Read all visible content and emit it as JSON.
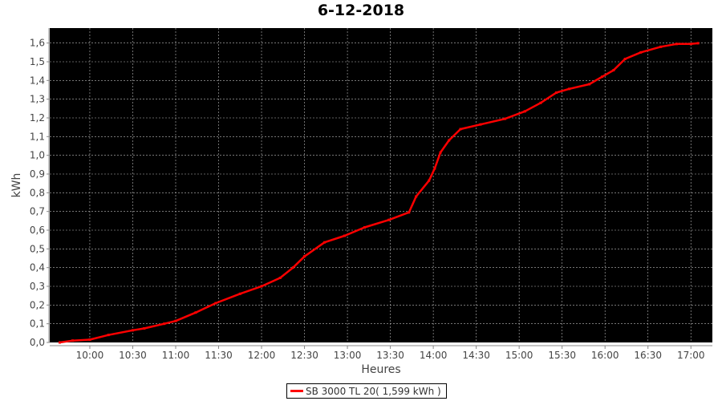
{
  "chart_data": {
    "type": "line",
    "title": "6-12-2018",
    "xlabel": "Heures",
    "ylabel": "kWh",
    "xlim": [
      "09:32",
      "17:15"
    ],
    "ylim": [
      0,
      1.68
    ],
    "x_ticks": [
      "10:00",
      "10:30",
      "11:00",
      "11:30",
      "12:00",
      "12:30",
      "13:00",
      "13:30",
      "14:00",
      "14:30",
      "15:00",
      "15:30",
      "16:00",
      "16:30",
      "17:00"
    ],
    "y_ticks": [
      "0,0",
      "0,1",
      "0,2",
      "0,3",
      "0,4",
      "0,5",
      "0,6",
      "0,7",
      "0,8",
      "0,9",
      "1,0",
      "1,1",
      "1,2",
      "1,3",
      "1,4",
      "1,5",
      "1,6"
    ],
    "grid": true,
    "background": "#000000",
    "legend_position": "bottom",
    "series": [
      {
        "name": "SB 3000 TL 20( 1,599 kWh )",
        "color": "#ff0000",
        "x": [
          "09:39",
          "09:48",
          "10:00",
          "10:13",
          "10:30",
          "10:38",
          "10:52",
          "11:00",
          "11:14",
          "11:28",
          "11:45",
          "12:00",
          "12:13",
          "12:22",
          "12:30",
          "12:44",
          "12:58",
          "13:12",
          "13:29",
          "13:43",
          "13:48",
          "13:57",
          "14:01",
          "14:05",
          "14:11",
          "14:19",
          "14:33",
          "14:50",
          "15:04",
          "15:15",
          "15:26",
          "15:35",
          "15:49",
          "15:58",
          "16:06",
          "16:14",
          "16:25",
          "16:39",
          "16:50",
          "17:00",
          "17:05"
        ],
        "y": [
          0,
          0.01,
          0.015,
          0.04,
          0.065,
          0.075,
          0.1,
          0.115,
          0.16,
          0.21,
          0.26,
          0.3,
          0.345,
          0.4,
          0.46,
          0.535,
          0.57,
          0.615,
          0.655,
          0.695,
          0.78,
          0.865,
          0.93,
          1.015,
          1.08,
          1.14,
          1.165,
          1.195,
          1.235,
          1.28,
          1.335,
          1.355,
          1.38,
          1.42,
          1.455,
          1.515,
          1.55,
          1.58,
          1.595,
          1.595,
          1.599
        ]
      }
    ]
  }
}
